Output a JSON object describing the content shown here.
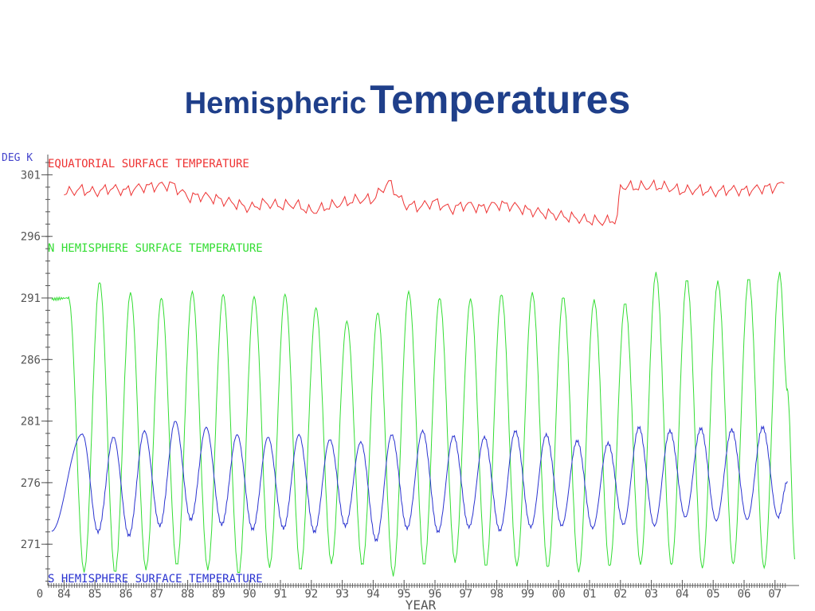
{
  "slide": {
    "title_part1": "Hemispheric",
    "title_part2": "Temperatures"
  },
  "colors": {
    "title": "#1f3f8a",
    "axis": "#555555",
    "equatorial": "#ee3333",
    "north": "#33dd33",
    "south": "#2a33d0",
    "unit_label": "#4444cc"
  },
  "chart_data": {
    "type": "line",
    "ylabel": "DEG K",
    "xlabel": "YEAR",
    "ylim": [
      267,
      302
    ],
    "yticks": [
      301,
      296,
      291,
      286,
      281,
      276,
      271
    ],
    "x_origin_label": "0",
    "x_tick_labels": [
      "84",
      "85",
      "86",
      "87",
      "88",
      "89",
      "90",
      "91",
      "92",
      "93",
      "94",
      "95",
      "96",
      "97",
      "98",
      "99",
      "00",
      "01",
      "02",
      "03",
      "04",
      "05",
      "06",
      "07"
    ],
    "xlim": [
      1983.5,
      2007.4
    ],
    "grid": false,
    "series": [
      {
        "name": "EQUATORIAL SURFACE TEMPERATURE",
        "color": "#ee3333",
        "x": [
          1984.0,
          1984.5,
          1985.0,
          1985.5,
          1986.0,
          1986.5,
          1987.0,
          1987.5,
          1988.0,
          1988.5,
          1989.0,
          1989.5,
          1990.0,
          1990.5,
          1991.0,
          1991.5,
          1992.0,
          1992.5,
          1993.0,
          1993.5,
          1994.0,
          1994.5,
          1995.0,
          1995.5,
          1996.0,
          1996.5,
          1997.0,
          1997.5,
          1998.0,
          1998.5,
          1999.0,
          1999.5,
          2000.0,
          2000.5,
          2001.0,
          2001.5,
          2001.9,
          2002.0,
          2002.5,
          2003.0,
          2003.5,
          2004.0,
          2004.5,
          2005.0,
          2005.5,
          2006.0,
          2006.5,
          2007.0,
          2007.3
        ],
        "y": [
          299.5,
          299.8,
          299.6,
          299.9,
          299.7,
          300.0,
          300.1,
          300.2,
          299.2,
          299.3,
          299.0,
          298.7,
          298.3,
          298.7,
          298.5,
          298.6,
          298.0,
          298.4,
          298.7,
          299.0,
          299.0,
          300.4,
          298.6,
          298.4,
          298.8,
          298.2,
          298.6,
          298.3,
          298.6,
          298.5,
          298.1,
          297.9,
          297.7,
          297.5,
          297.3,
          297.2,
          297.4,
          300.1,
          300.0,
          300.1,
          300.0,
          299.7,
          299.8,
          299.6,
          299.8,
          299.7,
          299.9,
          300.0,
          300.3
        ]
      },
      {
        "name": "N HEMISPHERE SURFACE TEMPERATURE",
        "color": "#33dd33",
        "peak_years": [
          1984.15,
          1985.15,
          1986.15,
          1987.15,
          1988.15,
          1989.15,
          1990.15,
          1991.15,
          1992.15,
          1993.15,
          1994.15,
          1995.15,
          1996.15,
          1997.15,
          1998.15,
          1999.15,
          2000.15,
          2001.15,
          2002.15,
          2003.15,
          2004.15,
          2005.15,
          2006.15,
          2007.15
        ],
        "peaks": [
          291.0,
          292.3,
          291.4,
          291.0,
          291.5,
          291.3,
          291.1,
          291.3,
          290.2,
          289.1,
          289.8,
          291.5,
          291.0,
          290.9,
          291.3,
          291.4,
          291.1,
          290.8,
          290.6,
          293.0,
          292.5,
          292.3,
          292.6,
          293.0
        ],
        "troughs": [
          268.8,
          268.7,
          269.0,
          269.3,
          269.0,
          268.6,
          269.2,
          268.9,
          269.5,
          269.3,
          268.5,
          269.3,
          269.6,
          269.2,
          269.3,
          269.1,
          268.8,
          269.2,
          269.4,
          269.3,
          269.1,
          269.4,
          269.1,
          269.8
        ],
        "x_start": 1983.6,
        "x_end": 2007.4,
        "y_start": 290.9,
        "y_end": 283.5
      },
      {
        "name": "S HEMISPHERE SURFACE TEMPERATURE",
        "color": "#2a33d0",
        "peak_years": [
          1984.6,
          1985.6,
          1986.6,
          1987.6,
          1988.6,
          1989.6,
          1990.6,
          1991.6,
          1992.6,
          1993.6,
          1994.6,
          1995.6,
          1996.6,
          1997.6,
          1998.6,
          1999.6,
          2000.6,
          2001.6,
          2002.6,
          2003.6,
          2004.6,
          2005.6,
          2006.6
        ],
        "peaks": [
          279.9,
          279.7,
          280.2,
          281.0,
          280.5,
          279.9,
          279.7,
          279.9,
          279.5,
          279.3,
          279.9,
          280.2,
          279.8,
          279.7,
          280.2,
          279.9,
          279.4,
          279.2,
          280.5,
          280.2,
          280.4,
          280.3,
          280.5
        ],
        "troughs": [
          272.0,
          271.7,
          272.5,
          273.0,
          272.6,
          272.2,
          272.3,
          272.0,
          272.5,
          271.3,
          272.3,
          272.0,
          272.4,
          272.1,
          272.4,
          272.5,
          272.3,
          272.6,
          272.5,
          273.2,
          272.9,
          273.0,
          273.2
        ],
        "x_start": 1983.6,
        "x_end": 2007.4,
        "y_start": 272.1,
        "y_end": 276.1
      }
    ]
  }
}
